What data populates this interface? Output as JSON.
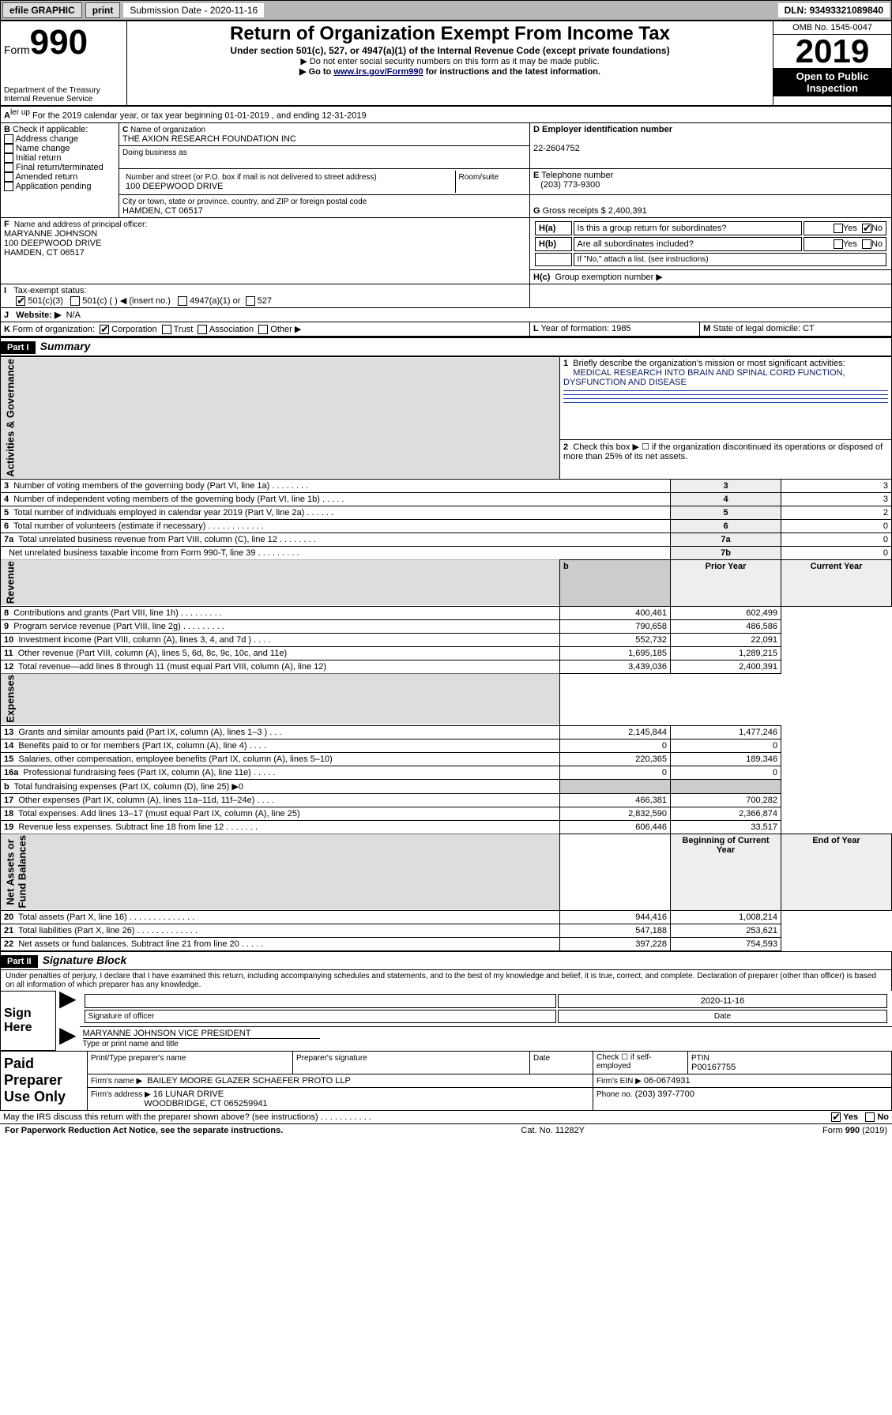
{
  "topbar": {
    "efile": "efile GRAPHIC",
    "print": "print",
    "subdate_label": "Submission Date - 2020-11-16",
    "dln": "DLN: 93493321089840"
  },
  "header": {
    "form_label": "Form",
    "form_no": "990",
    "dept": "Department of the Treasury\nInternal Revenue Service",
    "title": "Return of Organization Exempt From Income Tax",
    "sub1": "Under section 501(c), 527, or 4947(a)(1) of the Internal Revenue Code (except private foundations)",
    "sub2": "▶ Do not enter social security numbers on this form as it may be made public.",
    "sub3a": "▶ Go to ",
    "sub3_link": "www.irs.gov/Form990",
    "sub3b": " for instructions and the latest information.",
    "omb": "OMB No. 1545-0047",
    "year": "2019",
    "open": "Open to Public Inspection"
  },
  "periodA": "For the 2019 calendar year, or tax year beginning 01-01-2019   , and ending 12-31-2019",
  "boxB": {
    "label": "Check if applicable:",
    "opts": [
      "Address change",
      "Name change",
      "Initial return",
      "Final return/terminated",
      "Amended return",
      "Application pending"
    ]
  },
  "boxC": {
    "name_label": "Name of organization",
    "name": "THE AXION RESEARCH FOUNDATION INC",
    "dba_label": "Doing business as",
    "addr_label": "Number and street (or P.O. box if mail is not delivered to street address)",
    "room_label": "Room/suite",
    "addr": "100 DEEPWOOD DRIVE",
    "city_label": "City or town, state or province, country, and ZIP or foreign postal code",
    "city": "HAMDEN, CT  06517"
  },
  "boxD": {
    "label": "Employer identification number",
    "val": "22-2604752"
  },
  "boxE": {
    "label": "Telephone number",
    "val": "(203) 773-9300"
  },
  "boxG": {
    "label": "Gross receipts $",
    "val": "2,400,391"
  },
  "boxF": {
    "label": "Name and address of principal officer:",
    "lines": [
      "MARYANNE JOHNSON",
      "100 DEEPWOOD DRIVE",
      "HAMDEN, CT  06517"
    ]
  },
  "boxH": {
    "a": "Is this a group return for subordinates?",
    "b": "Are all subordinates included?",
    "note": "If \"No,\" attach a list. (see instructions)",
    "c": "Group exemption number ▶"
  },
  "rowI": {
    "label": "Tax-exempt status:",
    "o1": "501(c)(3)",
    "o2": "501(c) (   ) ◀ (insert no.)",
    "o3": "4947(a)(1) or",
    "o4": "527"
  },
  "rowJ": {
    "label": "Website: ▶",
    "val": "N/A"
  },
  "rowK": {
    "label": "Form of organization:",
    "opts": [
      "Corporation",
      "Trust",
      "Association",
      "Other ▶"
    ]
  },
  "rowL": {
    "label": "Year of formation:",
    "val": "1985"
  },
  "rowM": {
    "label": "State of legal domicile:",
    "val": "CT"
  },
  "part1": {
    "hdr": "Part I",
    "title": "Summary"
  },
  "summary": {
    "l1_label": "Briefly describe the organization's mission or most significant activities:",
    "l1_val": "MEDICAL RESEARCH INTO BRAIN AND SPINAL CORD FUNCTION, DYSFUNCTION AND DISEASE",
    "l2": "Check this box ▶ ☐  if the organization discontinued its operations or disposed of more than 25% of its net assets.",
    "rows_top": [
      {
        "n": "3",
        "label": "Number of voting members of the governing body (Part VI, line 1a)  .   .   .   .   .   .   .   .",
        "box": "3",
        "val": "3"
      },
      {
        "n": "4",
        "label": "Number of independent voting members of the governing body (Part VI, line 1b)  .   .   .   .   .",
        "box": "4",
        "val": "3"
      },
      {
        "n": "5",
        "label": "Total number of individuals employed in calendar year 2019 (Part V, line 2a)  .   .   .   .   .   .",
        "box": "5",
        "val": "2"
      },
      {
        "n": "6",
        "label": "Total number of volunteers (estimate if necessary)  .   .   .   .   .   .   .   .   .   .   .   .",
        "box": "6",
        "val": "0"
      },
      {
        "n": "7a",
        "label": "Total unrelated business revenue from Part VIII, column (C), line 12  .   .   .   .   .   .   .   .",
        "box": "7a",
        "val": "0"
      },
      {
        "n": "",
        "label": "Net unrelated business taxable income from Form 990-T, line 39  .   .   .   .   .   .   .   .   .",
        "box": "7b",
        "val": "0"
      }
    ],
    "year_hdr": {
      "prior": "Prior Year",
      "curr": "Current Year"
    },
    "revenue": [
      {
        "n": "8",
        "label": "Contributions and grants (Part VIII, line 1h)  .   .   .   .   .   .   .   .   .",
        "p": "400,461",
        "c": "602,499"
      },
      {
        "n": "9",
        "label": "Program service revenue (Part VIII, line 2g)  .   .   .   .   .   .   .   .   .",
        "p": "790,658",
        "c": "486,586"
      },
      {
        "n": "10",
        "label": "Investment income (Part VIII, column (A), lines 3, 4, and 7d )  .   .   .   .",
        "p": "552,732",
        "c": "22,091"
      },
      {
        "n": "11",
        "label": "Other revenue (Part VIII, column (A), lines 5, 6d, 8c, 9c, 10c, and 11e)",
        "p": "1,695,185",
        "c": "1,289,215"
      },
      {
        "n": "12",
        "label": "Total revenue—add lines 8 through 11 (must equal Part VIII, column (A), line 12)",
        "p": "3,439,036",
        "c": "2,400,391"
      }
    ],
    "expenses": [
      {
        "n": "13",
        "label": "Grants and similar amounts paid (Part IX, column (A), lines 1–3 )  .   .   .",
        "p": "2,145,844",
        "c": "1,477,246"
      },
      {
        "n": "14",
        "label": "Benefits paid to or for members (Part IX, column (A), line 4)  .   .   .   .",
        "p": "0",
        "c": "0"
      },
      {
        "n": "15",
        "label": "Salaries, other compensation, employee benefits (Part IX, column (A), lines 5–10)",
        "p": "220,365",
        "c": "189,346"
      },
      {
        "n": "16a",
        "label": "Professional fundraising fees (Part IX, column (A), line 11e)  .   .   .   .   .",
        "p": "0",
        "c": "0"
      },
      {
        "n": "b",
        "label": "Total fundraising expenses (Part IX, column (D), line 25) ▶0",
        "p": "",
        "c": "",
        "shaded": true
      },
      {
        "n": "17",
        "label": "Other expenses (Part IX, column (A), lines 11a–11d, 11f–24e)  .   .   .   .",
        "p": "466,381",
        "c": "700,282"
      },
      {
        "n": "18",
        "label": "Total expenses. Add lines 13–17 (must equal Part IX, column (A), line 25)",
        "p": "2,832,590",
        "c": "2,366,874"
      },
      {
        "n": "19",
        "label": "Revenue less expenses. Subtract line 18 from line 12  .   .   .   .   .   .   .",
        "p": "606,446",
        "c": "33,517"
      }
    ],
    "net_hdr": {
      "beg": "Beginning of Current Year",
      "end": "End of Year"
    },
    "net": [
      {
        "n": "20",
        "label": "Total assets (Part X, line 16)  .   .   .   .   .   .   .   .   .   .   .   .   .   .",
        "p": "944,416",
        "c": "1,008,214"
      },
      {
        "n": "21",
        "label": "Total liabilities (Part X, line 26)  .   .   .   .   .   .   .   .   .   .   .   .   .",
        "p": "547,188",
        "c": "253,621"
      },
      {
        "n": "22",
        "label": "Net assets or fund balances. Subtract line 21 from line 20  .   .   .   .   .",
        "p": "397,228",
        "c": "754,593"
      }
    ]
  },
  "vlabels": {
    "ag": "Activities & Governance",
    "rev": "Revenue",
    "exp": "Expenses",
    "net": "Net Assets or\nFund Balances"
  },
  "part2": {
    "hdr": "Part II",
    "title": "Signature Block"
  },
  "sig": {
    "perjury": "Under penalties of perjury, I declare that I have examined this return, including accompanying schedules and statements, and to the best of my knowledge and belief, it is true, correct, and complete. Declaration of preparer (other than officer) is based on all information of which preparer has any knowledge.",
    "sign_here": "Sign Here",
    "date": "2020-11-16",
    "sig_label": "Signature of officer",
    "date_label": "Date",
    "name": "MARYANNE JOHNSON  VICE PRESIDENT",
    "name_label": "Type or print name and title",
    "paid": "Paid Preparer Use Only",
    "prep_name_label": "Print/Type preparer's name",
    "prep_sig_label": "Preparer's signature",
    "prep_date_label": "Date",
    "check_label": "Check ☐ if self-employed",
    "ptin_label": "PTIN",
    "ptin": "P00167755",
    "firm_name_label": "Firm's name     ▶",
    "firm_name": "BAILEY MOORE GLAZER SCHAEFER PROTO LLP",
    "firm_ein_label": "Firm's EIN ▶",
    "firm_ein": "06-0674931",
    "firm_addr_label": "Firm's address ▶",
    "firm_addr1": "16 LUNAR DRIVE",
    "firm_addr2": "WOODBRIDGE, CT  065259941",
    "phone_label": "Phone no.",
    "phone": "(203) 397-7700",
    "discuss": "May the IRS discuss this return with the preparer shown above? (see instructions)   .   .   .   .   .   .   .   .   .   .   .",
    "yes": "Yes",
    "no": "No"
  },
  "footer": {
    "pra": "For Paperwork Reduction Act Notice, see the separate instructions.",
    "cat": "Cat. No. 11282Y",
    "form": "Form 990 (2019)"
  }
}
